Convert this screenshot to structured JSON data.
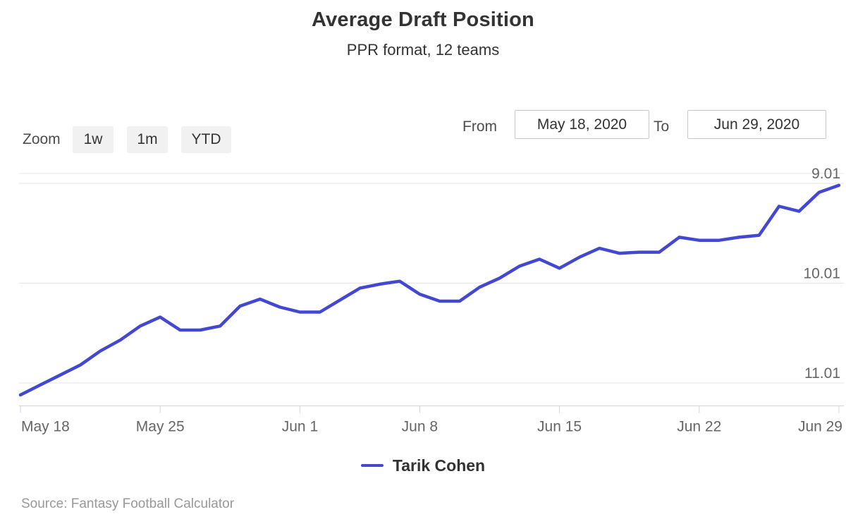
{
  "header": {
    "title": "Average Draft Position",
    "subtitle": "PPR format, 12 teams"
  },
  "controls": {
    "zoom_label": "Zoom",
    "zoom_buttons": [
      "1w",
      "1m",
      "YTD"
    ],
    "from_label": "From",
    "from_value": "May 18, 2020",
    "to_label": "To",
    "to_value": "Jun 29, 2020"
  },
  "chart_data": {
    "type": "line",
    "title": "Average Draft Position",
    "subtitle": "PPR format, 12 teams",
    "x_axis": {
      "tick_labels": [
        "May 18",
        "May 25",
        "Jun 1",
        "Jun 8",
        "Jun 15",
        "Jun 22",
        "Jun 29"
      ],
      "tick_indices": [
        0,
        7,
        14,
        20,
        27,
        34,
        41
      ],
      "start": "May 18, 2020",
      "end": "Jun 29, 2020"
    },
    "y_axis": {
      "ticks": [
        9.01,
        10.01,
        11.01
      ],
      "tick_labels": [
        "9.01",
        "10.01",
        "11.01"
      ],
      "reversed": true,
      "range": [
        8.91,
        11.24
      ],
      "grid": true,
      "extra_gridline_value": 8.91
    },
    "series": [
      {
        "name": "Tarik Cohen",
        "color": "#4348d4",
        "values": [
          11.13,
          11.03,
          10.93,
          10.83,
          10.69,
          10.58,
          10.44,
          10.35,
          10.48,
          10.48,
          10.44,
          10.24,
          10.17,
          10.25,
          10.3,
          10.3,
          10.18,
          10.06,
          10.02,
          9.99,
          10.12,
          10.19,
          10.19,
          10.05,
          9.96,
          9.84,
          9.77,
          9.86,
          9.75,
          9.66,
          9.71,
          9.7,
          9.7,
          9.55,
          9.58,
          9.58,
          9.55,
          9.53,
          9.24,
          9.29,
          9.1,
          9.03
        ]
      }
    ],
    "legend_position": "bottom"
  },
  "legend": {
    "items": [
      {
        "label": "Tarik Cohen",
        "color": "#4348d4"
      }
    ]
  },
  "source": {
    "text": "Source: Fantasy Football Calculator"
  },
  "colors": {
    "gridline": "#e6e6e6",
    "axis_line": "#ccd6eb",
    "axis_text": "#666666"
  }
}
